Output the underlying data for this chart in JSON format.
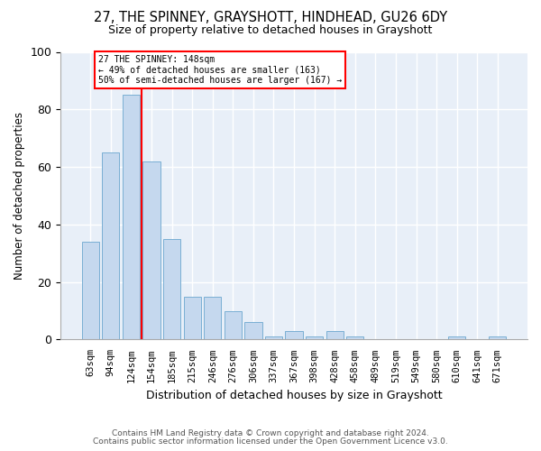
{
  "title": "27, THE SPINNEY, GRAYSHOTT, HINDHEAD, GU26 6DY",
  "subtitle": "Size of property relative to detached houses in Grayshott",
  "xlabel": "Distribution of detached houses by size in Grayshott",
  "ylabel": "Number of detached properties",
  "bar_color": "#c5d8ee",
  "bar_edge_color": "#7aafd4",
  "fig_bg_color": "#ffffff",
  "ax_bg_color": "#e8eff8",
  "grid_color": "#ffffff",
  "categories": [
    "63sqm",
    "94sqm",
    "124sqm",
    "154sqm",
    "185sqm",
    "215sqm",
    "246sqm",
    "276sqm",
    "306sqm",
    "337sqm",
    "367sqm",
    "398sqm",
    "428sqm",
    "458sqm",
    "489sqm",
    "519sqm",
    "549sqm",
    "580sqm",
    "610sqm",
    "641sqm",
    "671sqm"
  ],
  "values": [
    34,
    65,
    85,
    62,
    35,
    15,
    15,
    10,
    6,
    1,
    3,
    1,
    3,
    1,
    0,
    0,
    0,
    0,
    1,
    0,
    1
  ],
  "ylim": [
    0,
    100
  ],
  "yticks": [
    0,
    20,
    40,
    60,
    80,
    100
  ],
  "ref_line_x": 2.5,
  "ref_label": "27 THE SPINNEY: 148sqm",
  "anno_line1": "← 49% of detached houses are smaller (163)",
  "anno_line2": "50% of semi-detached houses are larger (167) →",
  "footnote1": "Contains HM Land Registry data © Crown copyright and database right 2024.",
  "footnote2": "Contains public sector information licensed under the Open Government Licence v3.0."
}
